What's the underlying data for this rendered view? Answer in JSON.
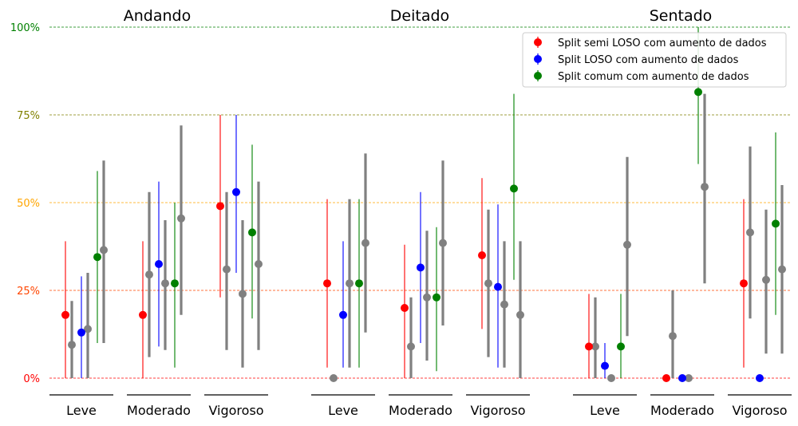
{
  "chart_data": {
    "type": "errorbar",
    "y_axis": {
      "ticks": [
        0,
        25,
        50,
        75,
        100
      ],
      "tick_labels": [
        "0%",
        "25%",
        "50%",
        "75%",
        "100%"
      ],
      "tick_colors": [
        "#ff0000",
        "#ff4500",
        "#ffa500",
        "#808000",
        "#008000"
      ],
      "ylim": [
        -5,
        100
      ]
    },
    "gridlines": [
      {
        "y": 0,
        "color": "#ff0000"
      },
      {
        "y": 25,
        "color": "#ff4500"
      },
      {
        "y": 50,
        "color": "#ffa500"
      },
      {
        "y": 75,
        "color": "#808000"
      },
      {
        "y": 100,
        "color": "#008000"
      }
    ],
    "groups": [
      {
        "title": "Andando",
        "categories": [
          "Leve",
          "Moderado",
          "Vigoroso"
        ]
      },
      {
        "title": "Deitado",
        "categories": [
          "Leve",
          "Moderado",
          "Vigoroso"
        ]
      },
      {
        "title": "Sentado",
        "categories": [
          "Leve",
          "Moderado",
          "Vigoroso"
        ]
      }
    ],
    "legend": {
      "position": "top-right"
    },
    "series": [
      {
        "name": "Split semi LOSO com aumento de dados",
        "color": "#ff0000",
        "points": [
          {
            "mean": 18,
            "low": 0,
            "high": 39
          },
          {
            "mean": 18,
            "low": 0,
            "high": 39
          },
          {
            "mean": 49,
            "low": 23,
            "high": 75
          },
          {
            "mean": 27,
            "low": 3,
            "high": 51
          },
          {
            "mean": 20,
            "low": 0,
            "high": 38
          },
          {
            "mean": 35,
            "low": 14,
            "high": 57
          },
          {
            "mean": 9,
            "low": 0,
            "high": 24
          },
          {
            "mean": 0,
            "low": 0,
            "high": 0
          },
          {
            "mean": 27,
            "low": 3,
            "high": 51
          }
        ],
        "reference": [
          {
            "mean": 9.5,
            "low": 0,
            "high": 22
          },
          {
            "mean": 29.5,
            "low": 6,
            "high": 53
          },
          {
            "mean": 31,
            "low": 8,
            "high": 53
          },
          {
            "mean": 0,
            "low": 0,
            "high": 0
          },
          {
            "mean": 9,
            "low": 0,
            "high": 23
          },
          {
            "mean": 27,
            "low": 6,
            "high": 48
          },
          {
            "mean": 9,
            "low": 0,
            "high": 23
          },
          {
            "mean": 12,
            "low": 0,
            "high": 25
          },
          {
            "mean": 41.5,
            "low": 17,
            "high": 66
          }
        ]
      },
      {
        "name": "Split LOSO com aumento de dados",
        "color": "#0000ff",
        "points": [
          {
            "mean": 13,
            "low": 0,
            "high": 29
          },
          {
            "mean": 32.5,
            "low": 9,
            "high": 56
          },
          {
            "mean": 53,
            "low": 30,
            "high": 75
          },
          {
            "mean": 18,
            "low": 3,
            "high": 39
          },
          {
            "mean": 31.5,
            "low": 10,
            "high": 53
          },
          {
            "mean": 26,
            "low": 3,
            "high": 49.5
          },
          {
            "mean": 3.5,
            "low": 0,
            "high": 10
          },
          {
            "mean": 0,
            "low": 0,
            "high": 0
          },
          {
            "mean": 0,
            "low": 0,
            "high": 0
          }
        ],
        "reference": [
          {
            "mean": 14,
            "low": 0,
            "high": 30
          },
          {
            "mean": 27,
            "low": 8,
            "high": 45
          },
          {
            "mean": 24,
            "low": 3,
            "high": 45
          },
          {
            "mean": 27,
            "low": 3,
            "high": 51
          },
          {
            "mean": 23,
            "low": 5,
            "high": 42
          },
          {
            "mean": 21,
            "low": 3,
            "high": 39
          },
          {
            "mean": 0,
            "low": 0,
            "high": 0
          },
          {
            "mean": 0,
            "low": 0,
            "high": 0
          },
          {
            "mean": 28,
            "low": 7,
            "high": 48
          }
        ]
      },
      {
        "name": "Split comum com aumento de dados",
        "color": "#008000",
        "points": [
          {
            "mean": 34.5,
            "low": 10,
            "high": 59
          },
          {
            "mean": 27,
            "low": 3,
            "high": 50
          },
          {
            "mean": 41.5,
            "low": 17,
            "high": 66.5
          },
          {
            "mean": 27,
            "low": 3,
            "high": 51
          },
          {
            "mean": 23,
            "low": 2,
            "high": 43
          },
          {
            "mean": 54,
            "low": 28,
            "high": 81
          },
          {
            "mean": 9,
            "low": 0,
            "high": 24
          },
          {
            "mean": 81.5,
            "low": 61,
            "high": 100
          },
          {
            "mean": 44,
            "low": 18,
            "high": 70
          }
        ],
        "reference": [
          {
            "mean": 36.5,
            "low": 10,
            "high": 62
          },
          {
            "mean": 45.5,
            "low": 18,
            "high": 72
          },
          {
            "mean": 32.5,
            "low": 8,
            "high": 56
          },
          {
            "mean": 38.5,
            "low": 13,
            "high": 64
          },
          {
            "mean": 38.5,
            "low": 15,
            "high": 62
          },
          {
            "mean": 18,
            "low": 0,
            "high": 39
          },
          {
            "mean": 38,
            "low": 12,
            "high": 63
          },
          {
            "mean": 54.5,
            "low": 27,
            "high": 81
          },
          {
            "mean": 31,
            "low": 7,
            "high": 55
          }
        ]
      }
    ],
    "reference_color": "#808080"
  }
}
